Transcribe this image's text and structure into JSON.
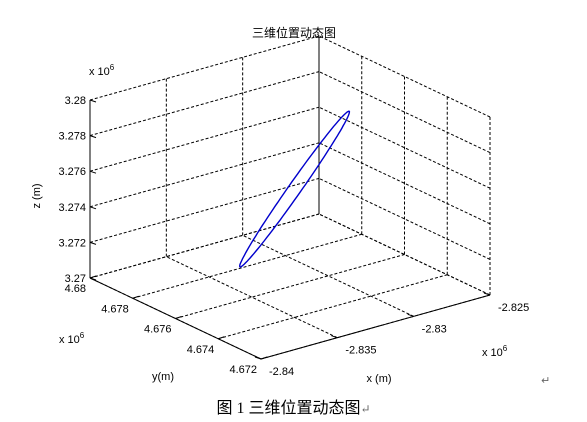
{
  "chart_data": {
    "type": "line",
    "projection": "3d",
    "title": "三维位置动态图",
    "xlabel": "x (m)",
    "ylabel": "y(m)",
    "zlabel": "z (m)",
    "x_multiplier": "x 10^6",
    "y_multiplier": "x 10^6",
    "z_multiplier": "x 10^6",
    "xlim": [
      -2.84,
      -2.825
    ],
    "ylim": [
      4.672,
      4.68
    ],
    "zlim": [
      3.27,
      3.28
    ],
    "x_ticks": [
      "-2.84",
      "-2.835",
      "-2.83",
      "-2.825"
    ],
    "y_ticks": [
      "4.672",
      "4.674",
      "4.676",
      "4.678",
      "4.68"
    ],
    "z_ticks": [
      "3.27",
      "3.272",
      "3.274",
      "3.276",
      "3.278",
      "3.28"
    ],
    "grid": true,
    "series": [
      {
        "color": "#0000cc",
        "shape": "closed ellipse (tilted orbit)",
        "approx_extent": {
          "x_range": [
            -2.836,
            -2.827
          ],
          "y_range": [
            4.675,
            4.678
          ],
          "z_range": [
            3.2712,
            3.2787
          ]
        }
      }
    ]
  },
  "caption": {
    "text": "图 1  三维位置动态图",
    "mark": "↵"
  },
  "stray_mark": "↵"
}
